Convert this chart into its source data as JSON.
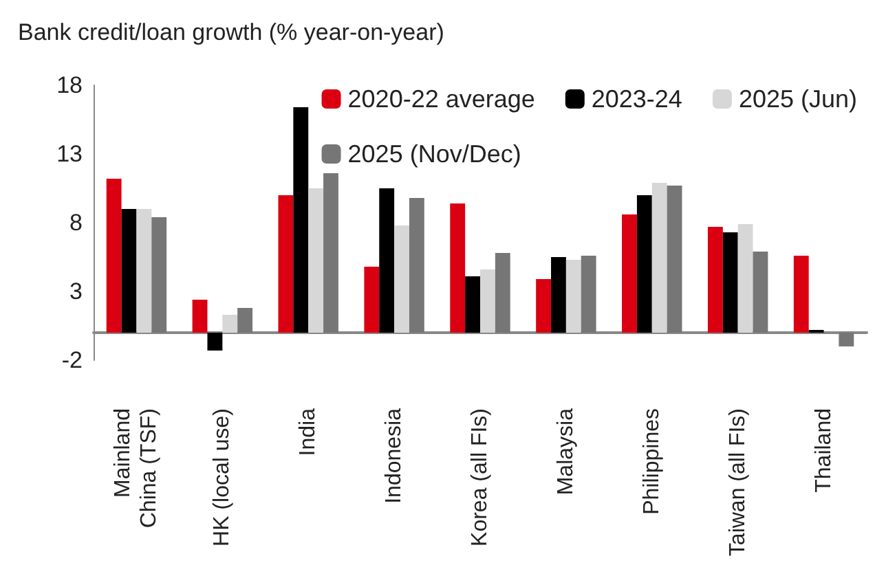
{
  "chart_data": {
    "type": "bar",
    "title": "Bank credit/loan growth (% year-on-year)",
    "categories": [
      "Mainland\nChina (TSF)",
      "HK (local use)",
      "India",
      "Indonesia",
      "Korea (all FIs)",
      "Malaysia",
      "Philippines",
      "Taiwan (all FIs)",
      "Thailand"
    ],
    "series": [
      {
        "name": "2020-22 average",
        "color": "#db0011",
        "values": [
          11.2,
          2.4,
          10.0,
          4.8,
          9.4,
          3.9,
          8.6,
          7.7,
          5.6
        ]
      },
      {
        "name": "2023-24",
        "color": "#000000",
        "values": [
          9.0,
          -1.3,
          16.4,
          10.5,
          4.1,
          5.5,
          10.0,
          7.3,
          0.2
        ]
      },
      {
        "name": "2025 (Jun)",
        "color": "#d7d7d7",
        "values": [
          9.0,
          1.3,
          10.5,
          7.8,
          4.6,
          5.3,
          10.9,
          7.9,
          0
        ]
      },
      {
        "name": "2025 (Nov/Dec)",
        "color": "#767676",
        "values": [
          8.4,
          1.8,
          11.6,
          9.8,
          5.8,
          5.6,
          10.7,
          5.9,
          -1.0
        ]
      }
    ],
    "ylim": [
      -2,
      18
    ],
    "yticks": [
      -2,
      3,
      8,
      13,
      18
    ],
    "grid": false,
    "legend": "top right"
  }
}
